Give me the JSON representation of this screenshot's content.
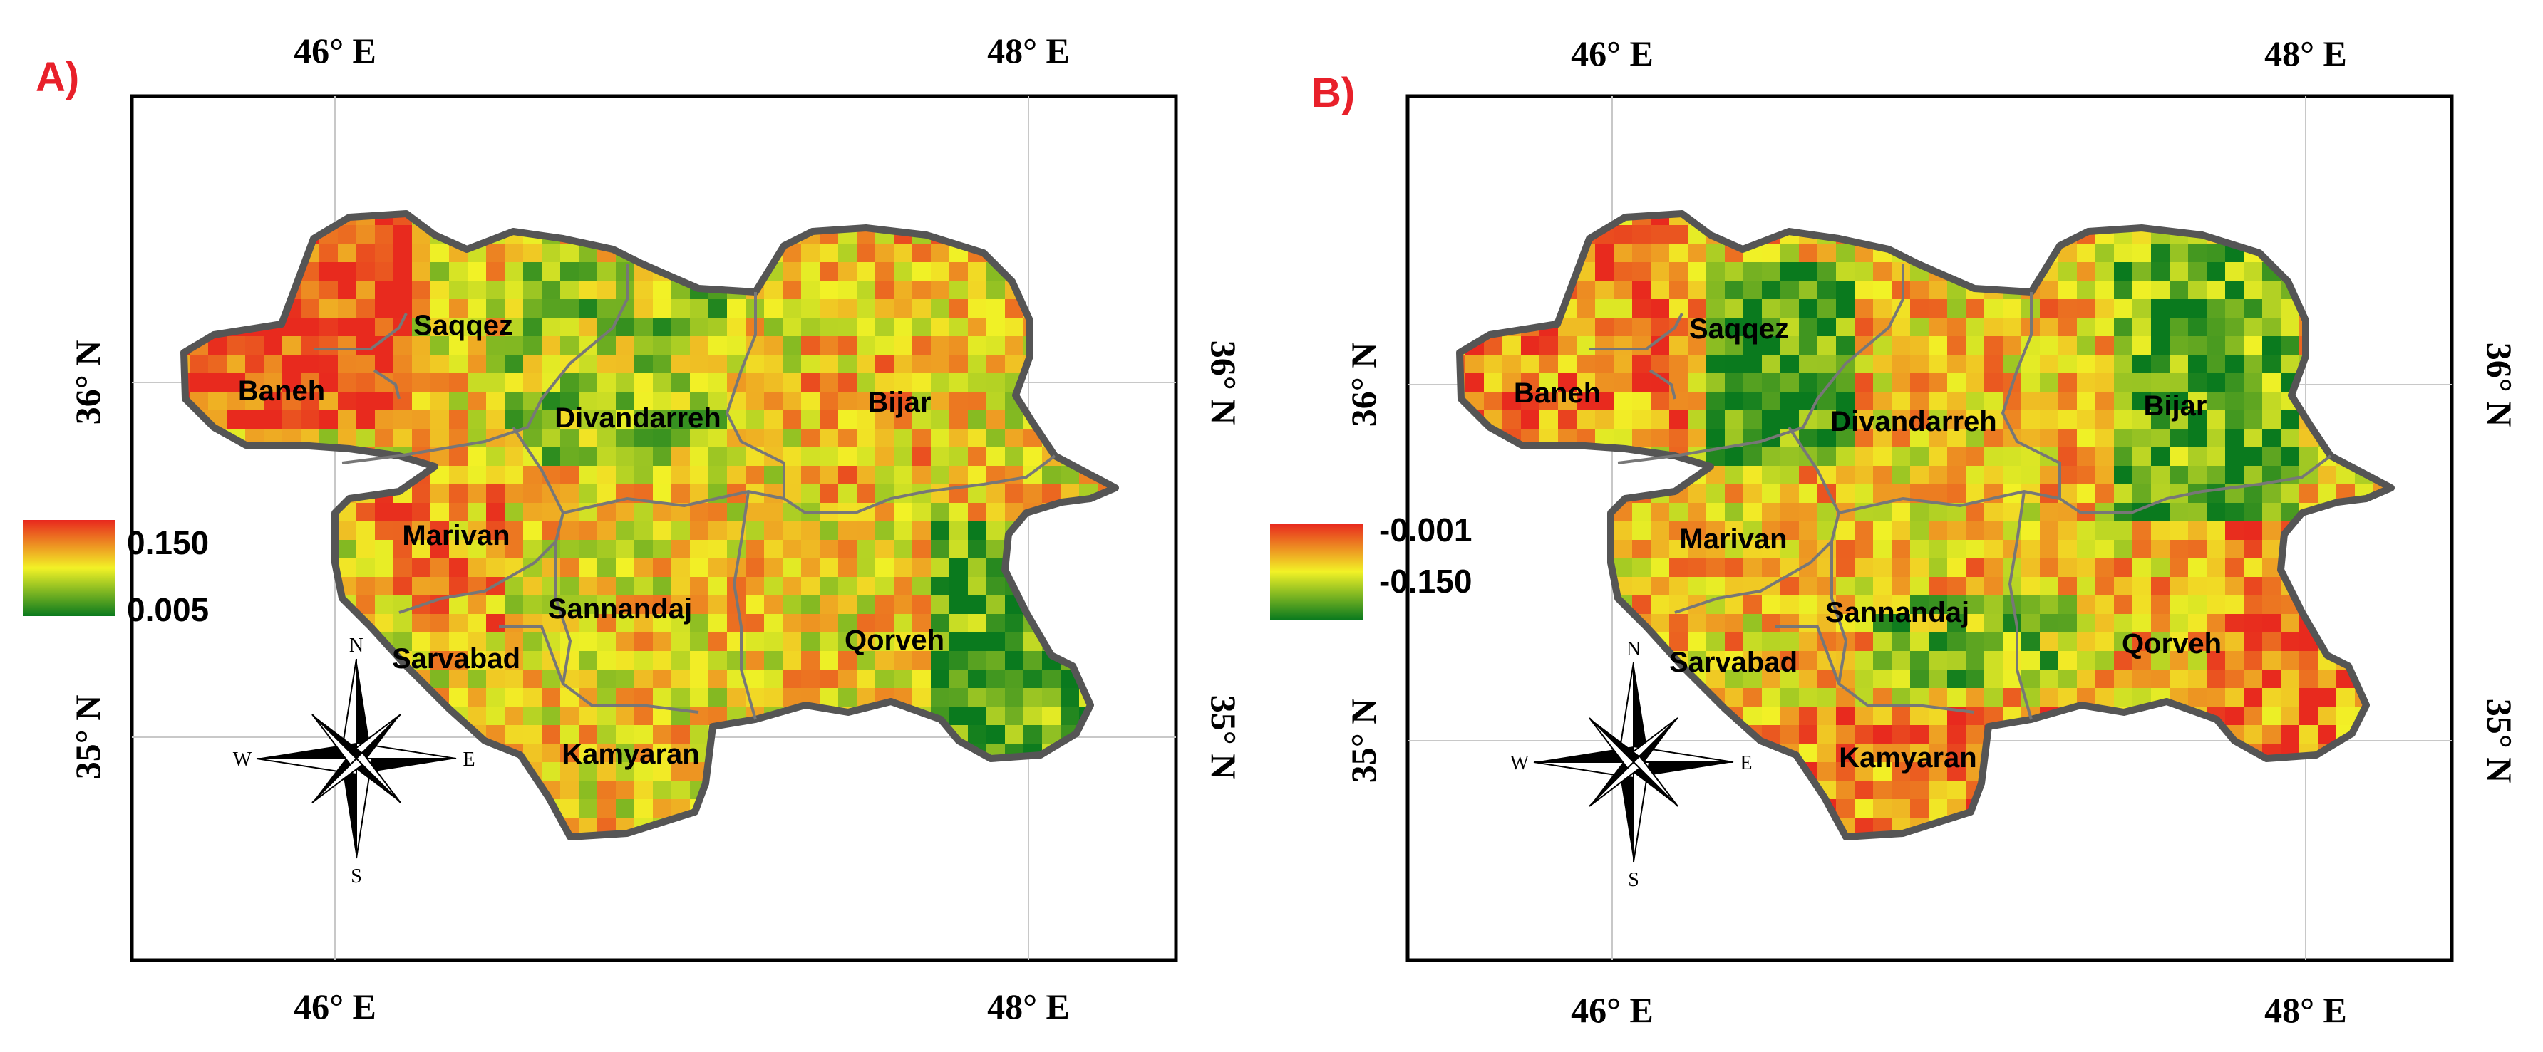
{
  "panels": [
    {
      "id": "A",
      "label": "A)",
      "top_ticks": [
        "46° E",
        "48° E"
      ],
      "bottom_ticks": [
        "46° E",
        "48° E"
      ],
      "left_ticks": [
        "36° N",
        "35° N"
      ],
      "right_ticks": [
        "36° N",
        "35° N"
      ],
      "legend": {
        "high": "0.150",
        "low": "0.005"
      },
      "places": [
        "Saqqez",
        "Baneh",
        "Divandarreh",
        "Bijar",
        "Marivan",
        "Sannandaj",
        "Sarvabad",
        "Qorveh",
        "Kamyaran"
      ],
      "compass": {
        "n": "N",
        "s": "S",
        "e": "E",
        "w": "W"
      }
    },
    {
      "id": "B",
      "label": "B)",
      "top_ticks": [
        "46° E",
        "48° E"
      ],
      "bottom_ticks": [
        "46° E",
        "48° E"
      ],
      "left_ticks": [
        "36° N",
        "35° N"
      ],
      "right_ticks": [
        "36° N",
        "35° N"
      ],
      "legend": {
        "high": "-0.001",
        "low": "-0.150"
      },
      "places": [
        "Saqqez",
        "Baneh",
        "Divandarreh",
        "Bijar",
        "Marivan",
        "Sannandaj",
        "Sarvabad",
        "Qorveh",
        "Kamyaran"
      ],
      "compass": {
        "n": "N",
        "s": "S",
        "e": "E",
        "w": "W"
      }
    }
  ],
  "colors": {
    "ramp_high": "#e8281e",
    "ramp_mid": "#f2f226",
    "ramp_low": "#0a7a1e",
    "border": "#555555",
    "panel_label": "#e8202a"
  }
}
